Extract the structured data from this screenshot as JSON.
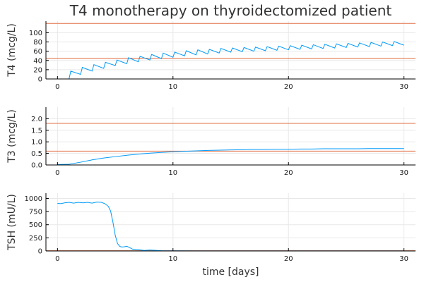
{
  "chart_data": [
    {
      "type": "line",
      "title": "T4 monotherapy on thyroidectomized patient",
      "xlabel": "",
      "ylabel": "T4 (mcg/L)",
      "xlim": [
        -1,
        31
      ],
      "ylim": [
        0,
        125
      ],
      "xticks": [
        0,
        10,
        20,
        30
      ],
      "yticks": [
        0,
        20,
        40,
        60,
        80,
        100
      ],
      "reference_lines": [
        45,
        120
      ],
      "grid": true,
      "series": [
        {
          "color": "#009AFA",
          "x": [
            0,
            1,
            1.15,
            2,
            2.15,
            3,
            3.15,
            4,
            4.15,
            5,
            5.15,
            6,
            6.15,
            7,
            7.15,
            8,
            8.15,
            9,
            9.15,
            10,
            10.15,
            11,
            11.15,
            12,
            12.15,
            13,
            13.15,
            14,
            14.15,
            15,
            15.15,
            16,
            16.15,
            17,
            17.15,
            18,
            18.15,
            19,
            19.15,
            20,
            20.15,
            21,
            21.15,
            22,
            22.15,
            23,
            23.15,
            24,
            24.15,
            25,
            25.15,
            26,
            26.15,
            27,
            27.15,
            28,
            28.15,
            29,
            29.15,
            30
          ],
          "y": [
            0,
            0,
            17,
            10,
            25,
            17,
            31,
            23,
            36,
            29,
            41,
            33,
            46,
            37,
            49,
            41,
            53,
            44,
            56,
            47,
            58,
            50,
            61,
            52,
            63,
            54,
            64,
            56,
            66,
            58,
            67,
            59,
            68,
            60,
            69,
            61,
            70,
            62,
            71,
            63,
            72,
            64,
            73,
            65,
            74,
            66,
            75,
            67,
            76,
            68,
            77,
            69,
            78,
            70,
            79,
            71,
            80,
            72,
            81,
            73
          ]
        }
      ]
    },
    {
      "type": "line",
      "title": "",
      "xlabel": "",
      "ylabel": "T3 (mcg/L)",
      "xlim": [
        -1,
        31
      ],
      "ylim": [
        0,
        2.5
      ],
      "xticks": [
        0,
        10,
        20,
        30
      ],
      "yticks": [
        0.0,
        0.5,
        1.0,
        1.5,
        2.0
      ],
      "reference_lines": [
        0.6,
        1.8
      ],
      "grid": true,
      "series": [
        {
          "color": "#009AFA",
          "x": [
            0,
            1,
            2,
            3,
            4,
            5,
            6,
            7,
            8,
            9,
            10,
            11,
            12,
            13,
            14,
            15,
            16,
            17,
            18,
            19,
            20,
            21,
            22,
            23,
            24,
            25,
            26,
            27,
            28,
            29,
            30
          ],
          "y": [
            0.02,
            0.03,
            0.12,
            0.22,
            0.3,
            0.36,
            0.42,
            0.47,
            0.51,
            0.54,
            0.57,
            0.59,
            0.61,
            0.63,
            0.64,
            0.65,
            0.66,
            0.67,
            0.67,
            0.68,
            0.68,
            0.69,
            0.69,
            0.7,
            0.7,
            0.7,
            0.7,
            0.71,
            0.71,
            0.71,
            0.71
          ]
        }
      ]
    },
    {
      "type": "line",
      "title": "",
      "xlabel": "time [days]",
      "ylabel": "TSH (mU/L)",
      "xlim": [
        -1,
        31
      ],
      "ylim": [
        0,
        1100
      ],
      "xticks": [
        0,
        10,
        20,
        30
      ],
      "yticks": [
        0,
        250,
        500,
        750,
        1000
      ],
      "reference_lines": [
        0.5,
        4.5
      ],
      "grid": true,
      "series": [
        {
          "color": "#009AFA",
          "x": [
            0,
            0.3,
            0.6,
            1,
            1.4,
            1.8,
            2.2,
            2.6,
            3,
            3.4,
            3.8,
            4.1,
            4.4,
            4.6,
            4.8,
            5,
            5.2,
            5.4,
            5.6,
            5.8,
            6,
            6.2,
            6.5,
            7,
            7.5,
            8,
            9,
            10,
            12,
            15,
            20,
            25,
            30
          ],
          "y": [
            905,
            900,
            915,
            925,
            910,
            925,
            915,
            925,
            910,
            930,
            925,
            900,
            850,
            760,
            550,
            300,
            140,
            85,
            75,
            80,
            90,
            70,
            35,
            25,
            10,
            18,
            5,
            3,
            2,
            1,
            1,
            1,
            1
          ]
        }
      ]
    }
  ]
}
